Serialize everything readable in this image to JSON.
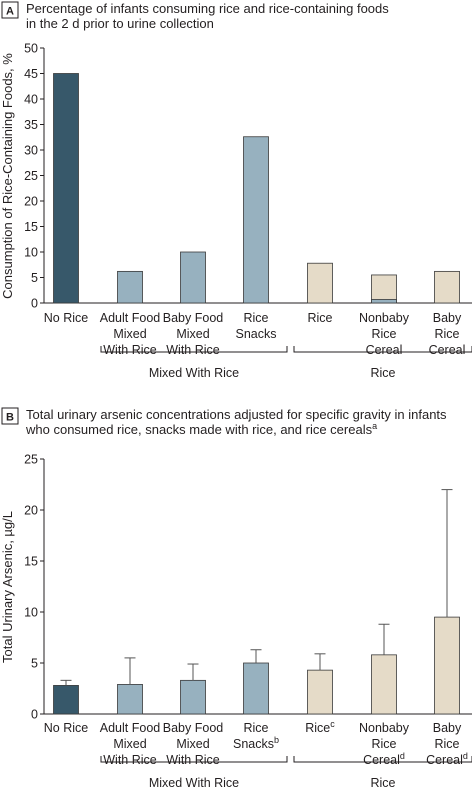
{
  "colors": {
    "dark": "#37586a",
    "mid": "#97b1bf",
    "light": "#e5dbc8"
  },
  "chart_data": [
    {
      "panel": "A",
      "type": "bar",
      "title_lines": [
        "Percentage of infants consuming rice and rice-containing foods",
        "in the 2 d prior to urine collection"
      ],
      "ylabel": "Consumption of Rice-Containing Foods, %",
      "ylim": [
        0,
        50
      ],
      "yticks": [
        0,
        5,
        10,
        15,
        20,
        25,
        30,
        35,
        40,
        45,
        50
      ],
      "categories": [
        {
          "lines": [
            "No Rice"
          ],
          "sups": [
            ""
          ]
        },
        {
          "lines": [
            "Adult Food",
            "Mixed",
            "With Rice"
          ],
          "sups": [
            "",
            "",
            ""
          ]
        },
        {
          "lines": [
            "Baby Food",
            "Mixed",
            "With Rice"
          ],
          "sups": [
            "",
            "",
            ""
          ]
        },
        {
          "lines": [
            "Rice",
            "Snacks"
          ],
          "sups": [
            "",
            ""
          ]
        },
        {
          "lines": [
            "Rice"
          ],
          "sups": [
            ""
          ]
        },
        {
          "lines": [
            "Nonbaby",
            "Rice",
            "Cereal"
          ],
          "sups": [
            "",
            "",
            ""
          ]
        },
        {
          "lines": [
            "Baby",
            "Rice",
            "Cereal"
          ],
          "sups": [
            "",
            "",
            ""
          ]
        }
      ],
      "values": [
        45,
        6.2,
        10,
        32.6,
        7.8,
        5.5,
        6.2
      ],
      "inner_values": [
        null,
        null,
        null,
        null,
        null,
        0.7,
        null
      ],
      "color_keys": [
        "dark",
        "mid",
        "mid",
        "mid",
        "light",
        "light",
        "light"
      ],
      "groups": [
        {
          "label": "Mixed With Rice",
          "from": 1,
          "to": 3
        },
        {
          "label": "Rice",
          "from": 4,
          "to": 6
        }
      ]
    },
    {
      "panel": "B",
      "type": "bar",
      "title_lines": [
        "Total urinary arsenic concentrations adjusted for specific gravity in infants",
        "who consumed rice, snacks made with rice, and rice cereals"
      ],
      "title_sup": "a",
      "ylabel": "Total Urinary Arsenic, µg/L",
      "ylim": [
        0,
        25
      ],
      "yticks": [
        0,
        5,
        10,
        15,
        20,
        25
      ],
      "categories": [
        {
          "lines": [
            "No Rice"
          ],
          "sups": [
            ""
          ]
        },
        {
          "lines": [
            "Adult Food",
            "Mixed",
            "With Rice"
          ],
          "sups": [
            "",
            "",
            ""
          ]
        },
        {
          "lines": [
            "Baby Food",
            "Mixed",
            "With Rice"
          ],
          "sups": [
            "",
            "",
            ""
          ]
        },
        {
          "lines": [
            "Rice",
            "Snacks"
          ],
          "sups": [
            "",
            "b"
          ]
        },
        {
          "lines": [
            "Rice"
          ],
          "sups": [
            "c"
          ]
        },
        {
          "lines": [
            "Nonbaby",
            "Rice",
            "Cereal"
          ],
          "sups": [
            "",
            "",
            "d"
          ]
        },
        {
          "lines": [
            "Baby",
            "Rice",
            "Cereal"
          ],
          "sups": [
            "",
            "",
            "d"
          ]
        }
      ],
      "values": [
        2.8,
        2.9,
        3.3,
        5.0,
        4.3,
        5.8,
        9.5
      ],
      "upper": [
        3.3,
        5.5,
        4.9,
        6.3,
        5.9,
        8.8,
        22.0
      ],
      "color_keys": [
        "dark",
        "mid",
        "mid",
        "mid",
        "light",
        "light",
        "light"
      ],
      "groups": [
        {
          "label": "Mixed With Rice",
          "from": 1,
          "to": 3
        },
        {
          "label": "Rice",
          "from": 4,
          "to": 6
        }
      ]
    }
  ]
}
